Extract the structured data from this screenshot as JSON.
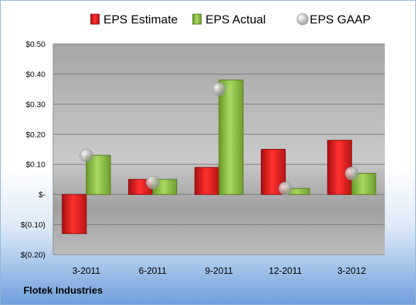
{
  "company": "Flotek Industries",
  "chart_data": {
    "type": "bar",
    "categories": [
      "3-2011",
      "6-2011",
      "9-2011",
      "12-2011",
      "3-2012"
    ],
    "series": [
      {
        "name": "EPS Estimate",
        "type": "bar",
        "color": "#e02020",
        "values": [
          -0.13,
          0.05,
          0.09,
          0.15,
          0.18
        ]
      },
      {
        "name": "EPS Actual",
        "type": "bar",
        "color": "#8cbf3f",
        "values": [
          0.13,
          0.05,
          0.38,
          0.02,
          0.07
        ]
      },
      {
        "name": "EPS GAAP",
        "type": "scatter",
        "color": "#b8b8b8",
        "values": [
          0.13,
          0.04,
          0.35,
          0.02,
          0.07
        ]
      }
    ],
    "ylim": [
      -0.2,
      0.5
    ],
    "yticks": [
      0.5,
      0.4,
      0.3,
      0.2,
      0.1,
      0,
      -0.1,
      -0.2
    ],
    "ytick_labels": [
      "$0.50",
      "$0.40",
      "$0.30",
      "$0.20",
      "$0.10",
      "$-",
      "$(0.10)",
      "$(0.20)"
    ],
    "grid": true,
    "legend": "top"
  }
}
